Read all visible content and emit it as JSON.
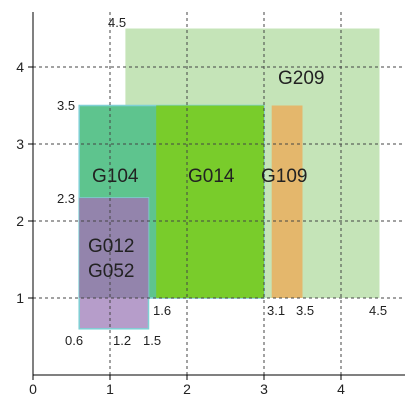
{
  "chart_data": {
    "type": "area",
    "title": "",
    "xlabel": "",
    "ylabel": "",
    "xlim": [
      0,
      4.8
    ],
    "ylim": [
      0,
      5.0
    ],
    "grid": true,
    "x_ticks": [
      0,
      1,
      2,
      3,
      4
    ],
    "y_ticks": [
      1,
      2,
      3,
      4
    ],
    "colors": {
      "G209": "#c5e4b8",
      "G104": "#5ec48e",
      "G014": "#79cc2b",
      "G109": "#e4b76c",
      "G012": "#b69dca",
      "G052": "#8f82a8",
      "outline": "#7fd0d4"
    },
    "regions": [
      {
        "name": "G209",
        "x0": 1.2,
        "x1": 4.5,
        "y0": 1.0,
        "y1": 4.5
      },
      {
        "name": "G104",
        "x0": 0.6,
        "x1": 3.0,
        "y0": 1.0,
        "y1": 3.5
      },
      {
        "name": "G014",
        "x0": 1.6,
        "x1": 3.0,
        "y0": 1.0,
        "y1": 3.5
      },
      {
        "name": "G109",
        "x0": 3.1,
        "x1": 3.5,
        "y0": 1.0,
        "y1": 3.5
      },
      {
        "name": "G012",
        "x0": 0.6,
        "x1": 1.5,
        "y0": 0.6,
        "y1": 2.3
      },
      {
        "name": "G052",
        "x0": 0.6,
        "x1": 1.5,
        "y0": 1.0,
        "y1": 2.3
      }
    ],
    "annotations": {
      "top_4_5": "4.5",
      "left_3_5": "3.5",
      "left_2_3": "2.3",
      "bottom_0_6": "0.6",
      "bottom_1_2": "1.2",
      "bottom_1_5": "1.5",
      "bottom_1_6": "1.6",
      "bottom_3_1": "3.1",
      "bottom_3_5": "3.5",
      "bottom_4_5": "4.5"
    },
    "labels": {
      "G209": "G209",
      "G104": "G104",
      "G014": "G014",
      "G109": "G109",
      "G012": "G012",
      "G052": "G052"
    }
  }
}
